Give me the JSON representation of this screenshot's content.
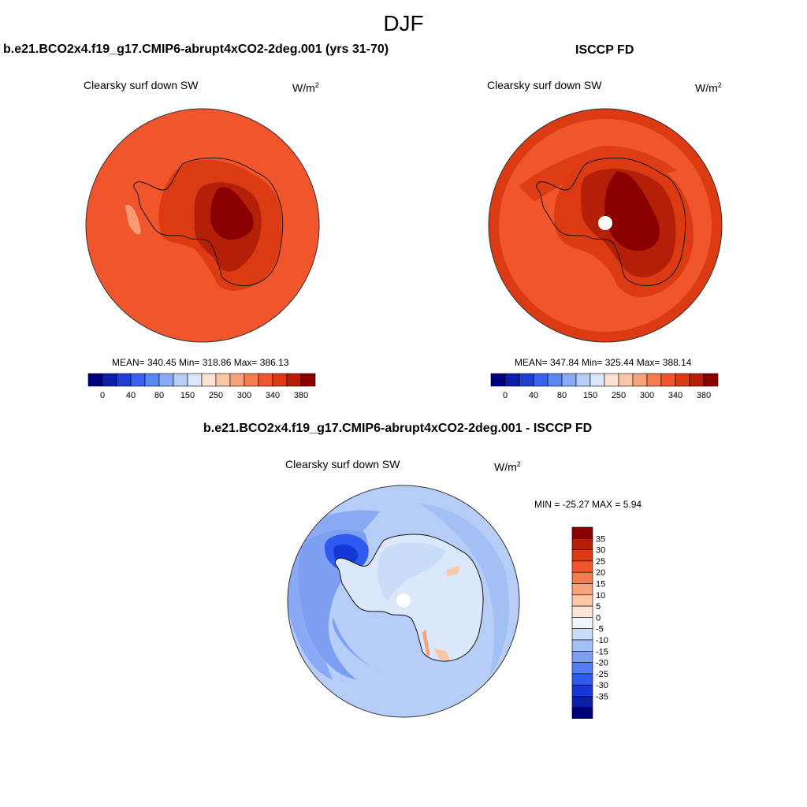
{
  "season": "DJF",
  "panels": {
    "model": {
      "title": "b.e21.BCO2x4.f19_g17.CMIP6-abrupt4xCO2-2deg.001 (yrs 31-70)",
      "variable": "Clearsky surf down SW",
      "units_base": "W/m",
      "units_exp": "2",
      "stats": "MEAN= 340.45  Min= 318.86  Max= 386.13"
    },
    "obs": {
      "title": "ISCCP FD",
      "variable": "Clearsky surf down SW",
      "units_base": "W/m",
      "units_exp": "2",
      "stats": "MEAN= 347.84  Min= 325.44  Max= 388.14"
    },
    "diff": {
      "title": "b.e21.BCO2x4.f19_g17.CMIP6-abrupt4xCO2-2deg.001 - ISCCP FD",
      "variable": "Clearsky surf down SW",
      "units_base": "W/m",
      "units_exp": "2",
      "stats": "MIN = -25.27 MAX =   5.94"
    }
  },
  "abs_colorbar": {
    "colors": [
      "#00007f",
      "#0a1fa6",
      "#1f3fcf",
      "#3a62f0",
      "#5b86f5",
      "#8aaaf5",
      "#b5cdf7",
      "#dbe8fb",
      "#ffe3d2",
      "#fbc6a6",
      "#f8a27b",
      "#f57c4f",
      "#f0552b",
      "#dc3a12",
      "#b31f07",
      "#8a0000"
    ],
    "ticks": [
      "0",
      "40",
      "80",
      "150",
      "250",
      "300",
      "340",
      "380"
    ]
  },
  "diff_colorbar": {
    "colors": [
      "#8a0000",
      "#b31f07",
      "#dc3a12",
      "#f0552b",
      "#f57c4f",
      "#f8a27b",
      "#fbc6a6",
      "#ffe3d2",
      "#eef4fc",
      "#c9dcf8",
      "#a3c0f5",
      "#7c9ff2",
      "#557ff0",
      "#2f5aef",
      "#1738d6",
      "#0a1fa6",
      "#00007f"
    ],
    "ticks": [
      "35",
      "30",
      "25",
      "20",
      "15",
      "10",
      "5",
      "0",
      "-5",
      "-10",
      "-15",
      "-20",
      "-25",
      "-30",
      "-35"
    ]
  }
}
